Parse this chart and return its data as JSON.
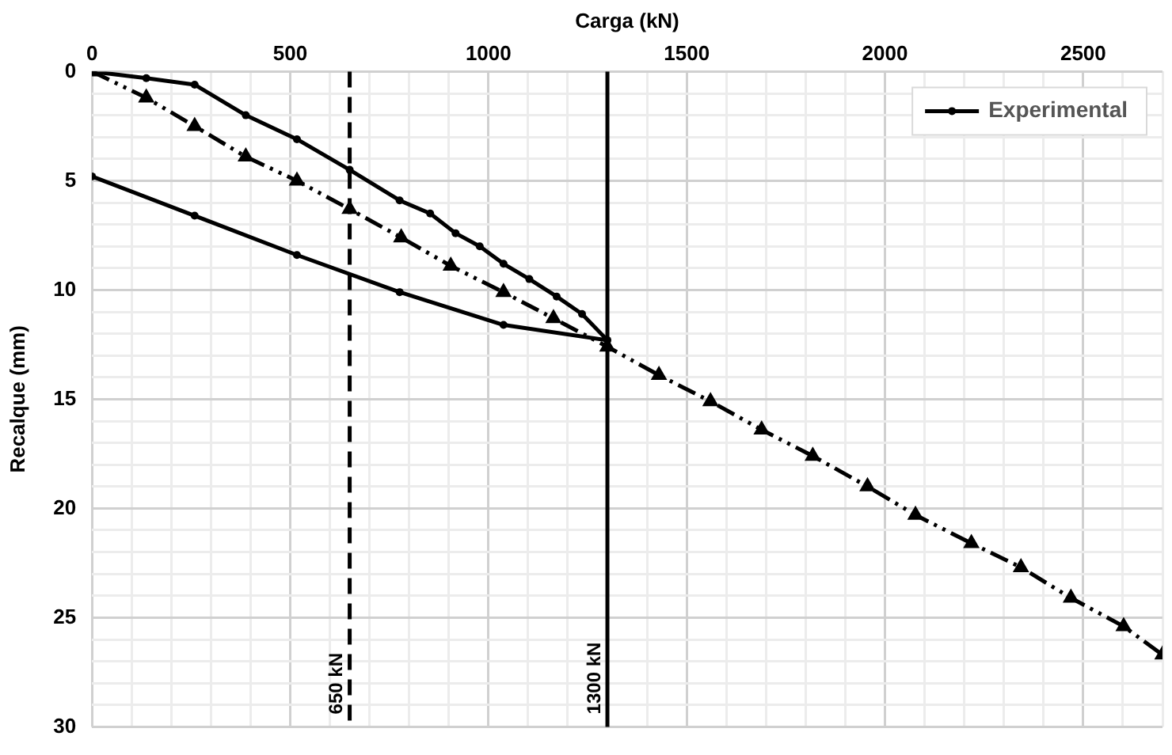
{
  "chart_data": {
    "type": "line",
    "xlabel": "Carga (kN)",
    "ylabel": "Recalque (mm)",
    "xlim": [
      0,
      2700
    ],
    "xticks": [
      0,
      {
        "value": 100,
        "label": null
      },
      {
        "value": 200,
        "label": null
      },
      {
        "value": 300,
        "label": null
      },
      {
        "value": 400,
        "label": null
      },
      500,
      {
        "value": 600,
        "label": null
      },
      {
        "value": 700,
        "label": null
      },
      {
        "value": 800,
        "label": null
      },
      {
        "value": 900,
        "label": null
      },
      1000,
      {
        "value": 1100,
        "label": null
      },
      {
        "value": 1200,
        "label": null
      },
      {
        "value": 1300,
        "label": null
      },
      {
        "value": 1400,
        "label": null
      },
      1500,
      {
        "value": 1600,
        "label": null
      },
      {
        "value": 1700,
        "label": null
      },
      {
        "value": 1800,
        "label": null
      },
      {
        "value": 1900,
        "label": null
      },
      2000,
      {
        "value": 2100,
        "label": null
      },
      {
        "value": 2200,
        "label": null
      },
      {
        "value": 2300,
        "label": null
      },
      {
        "value": 2400,
        "label": null
      },
      2500,
      {
        "value": 2600,
        "label": null
      },
      {
        "value": 2700,
        "label": null
      }
    ],
    "ylim": [
      30,
      0
    ],
    "yticks": [
      0,
      {
        "value": 1,
        "label": null
      },
      {
        "value": 2,
        "label": null
      },
      {
        "value": 3,
        "label": null
      },
      {
        "value": 4,
        "label": null
      },
      5,
      {
        "value": 6,
        "label": null
      },
      {
        "value": 7,
        "label": null
      },
      {
        "value": 8,
        "label": null
      },
      {
        "value": 9,
        "label": null
      },
      10,
      {
        "value": 11,
        "label": null
      },
      {
        "value": 12,
        "label": null
      },
      {
        "value": 13,
        "label": null
      },
      {
        "value": 14,
        "label": null
      },
      15,
      {
        "value": 16,
        "label": null
      },
      {
        "value": 17,
        "label": null
      },
      {
        "value": 18,
        "label": null
      },
      {
        "value": 19,
        "label": null
      },
      20,
      {
        "value": 21,
        "label": null
      },
      {
        "value": 22,
        "label": null
      },
      {
        "value": 23,
        "label": null
      },
      {
        "value": 24,
        "label": null
      },
      25,
      {
        "value": 26,
        "label": null
      },
      {
        "value": 27,
        "label": null
      },
      {
        "value": 28,
        "label": null
      },
      {
        "value": 29,
        "label": null
      },
      30
    ],
    "grid": true,
    "legend": "top right",
    "series": [
      {
        "name": "Experimental",
        "color": "#000000",
        "marker": "circle",
        "line_style": "solid",
        "x": [
          0,
          137,
          259,
          388,
          517,
          650,
          776,
          853,
          917,
          978,
          1038,
          1103,
          1172,
          1236,
          1300,
          1038,
          776,
          517,
          259,
          0
        ],
        "values": [
          0,
          0.3,
          0.6,
          2.0,
          3.1,
          4.5,
          5.9,
          6.5,
          7.4,
          8.0,
          8.8,
          9.5,
          10.3,
          11.1,
          12.3,
          11.6,
          10.1,
          8.4,
          6.6,
          4.8
        ]
      },
      {
        "color": "#000000",
        "marker": "triangle",
        "line_style": "dashed",
        "x": [
          0,
          137,
          259,
          388,
          517,
          650,
          780,
          905,
          1038,
          1164,
          1300,
          1430,
          1560,
          1689,
          1818,
          1956,
          2077,
          2218,
          2343,
          2469,
          2602,
          2700
        ],
        "values": [
          0,
          1.2,
          2.5,
          3.9,
          5.0,
          6.3,
          7.6,
          8.9,
          10.1,
          11.3,
          12.6,
          13.9,
          15.1,
          16.4,
          17.6,
          19.0,
          20.3,
          21.6,
          22.7,
          24.1,
          25.4,
          26.7
        ]
      }
    ],
    "ref_lines": [
      {
        "axis": "x",
        "value": 650,
        "label": "650 kN",
        "line_style": "dashed"
      },
      {
        "axis": "x",
        "value": 1300,
        "label": "1300 kN",
        "line_style": "solid"
      }
    ]
  }
}
